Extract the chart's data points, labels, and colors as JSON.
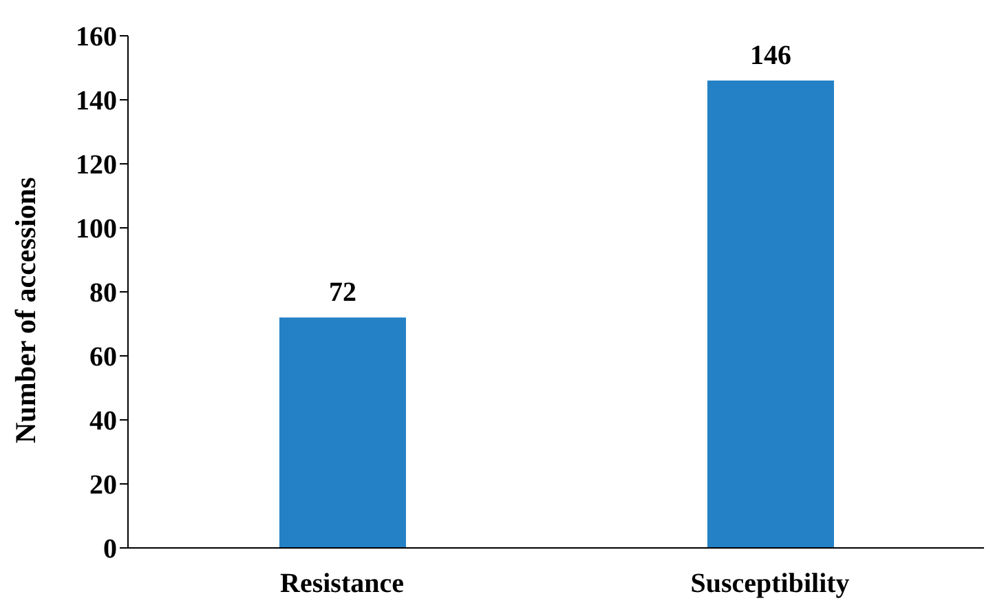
{
  "chart_data": {
    "type": "bar",
    "ylabel": "Number of accessions",
    "categories": [
      "Resistance",
      "Susceptibility"
    ],
    "values": [
      72,
      146
    ],
    "color": "#2481c6",
    "ylim": [
      0,
      160
    ],
    "yticks": [
      0,
      20,
      40,
      60,
      80,
      100,
      120,
      140,
      160
    ],
    "data_labels": true,
    "grid": false
  }
}
